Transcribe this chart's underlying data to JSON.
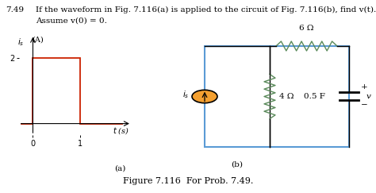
{
  "problem_number": "7.49",
  "problem_text": "If the waveform in Fig. 7.116(a) is applied to the circuit of Fig. 7.116(b), find v(t).",
  "problem_text2": "Assume v(0) = 0.",
  "figure_caption": "Figure 7.116  For Prob. 7.49.",
  "label_a": "(a)",
  "label_b": "(b)",
  "waveform_xlabel": "t (s)",
  "waveform_color": "#cc2200",
  "resistor1_label": "6 Ω",
  "resistor2_label": "4 Ω",
  "capacitor_label": "0.5 F",
  "source_label": "i_s",
  "voltage_label": "v",
  "bg_color": "#ffffff",
  "circuit_blue": "#5b9bd5",
  "source_orange": "#f4a030",
  "resistor_green": "#5a8a5a",
  "text_color": "#333333"
}
